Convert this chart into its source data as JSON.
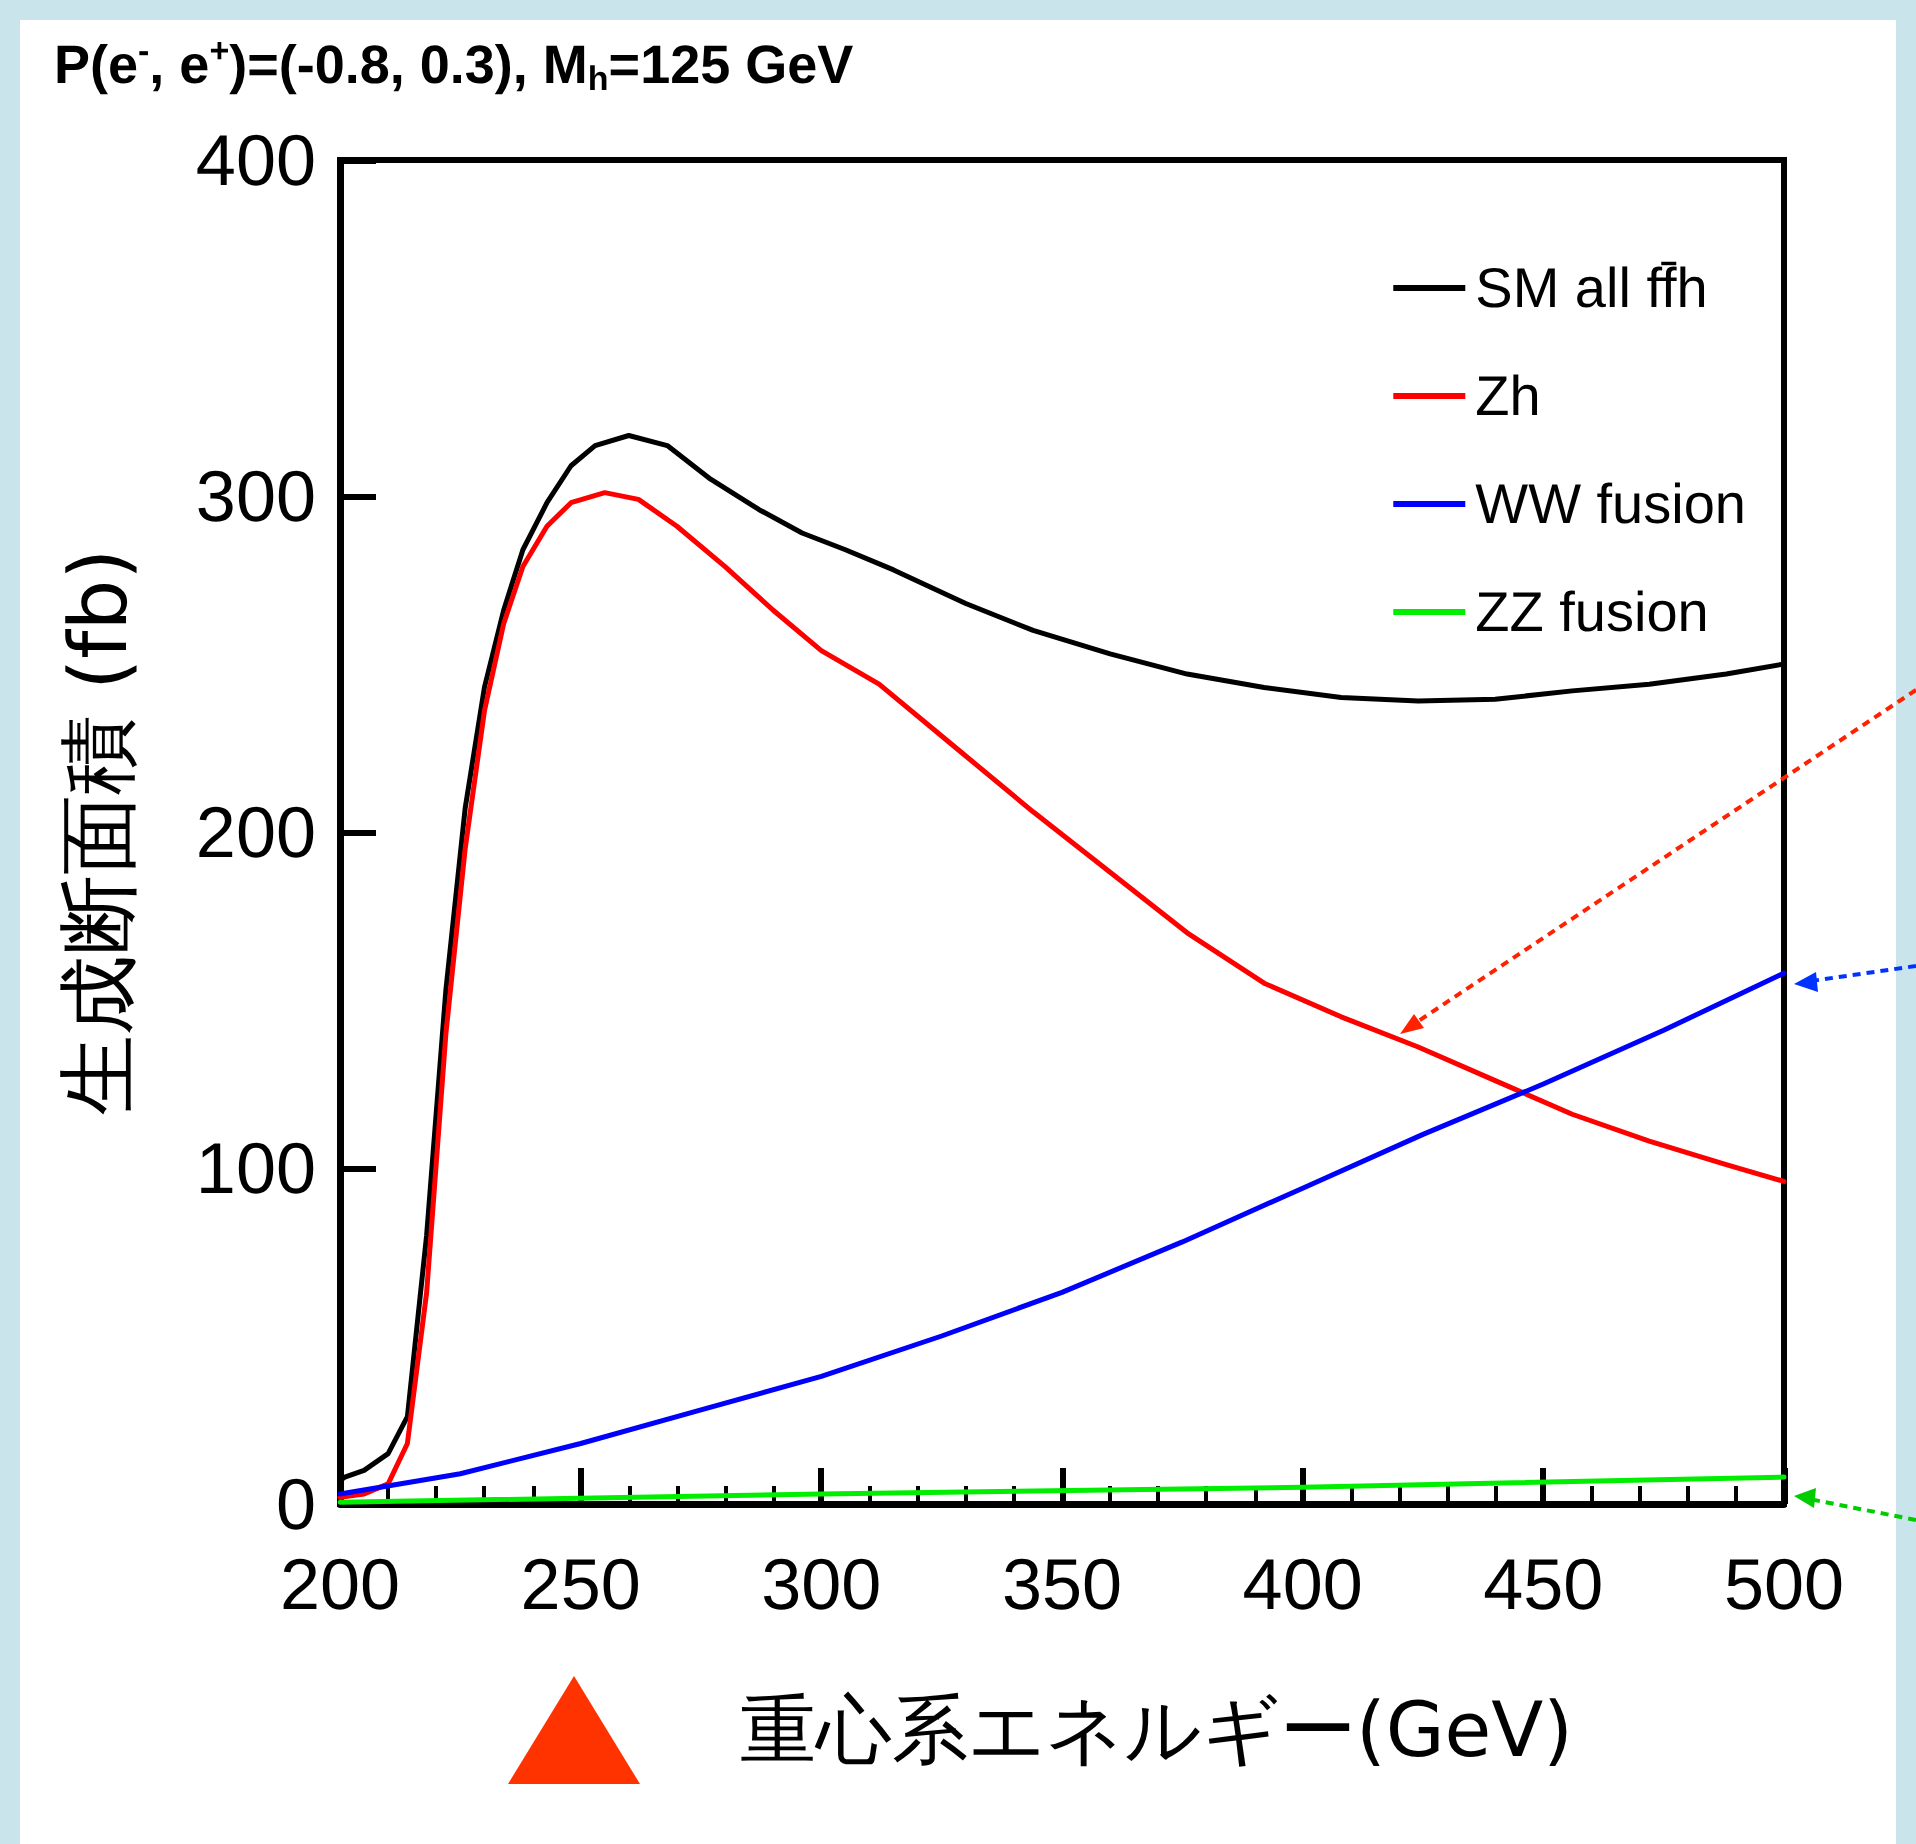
{
  "chart_data": {
    "type": "line",
    "title": "P(e$^{-}$, e$^{+}$)=(-0.8, 0.3), M$_{h}$=125 GeV",
    "xlabel": "重心系エネルギー(GeV)",
    "ylabel": "生成断面積 (fb)",
    "xlim": [
      200,
      500
    ],
    "xticks": [
      200,
      250,
      300,
      350,
      400,
      450,
      500
    ],
    "ylim": [
      0,
      400
    ],
    "yticks": [
      0,
      100,
      200,
      300,
      400
    ],
    "grid": false,
    "legend": "top right",
    "marker": "none",
    "line_style": "solid",
    "series": [
      {
        "name": "SM all ff̄h",
        "color": "#000000",
        "x": [
          200,
          201,
          205,
          210,
          214,
          218,
          222,
          226,
          230,
          234,
          238,
          243,
          248,
          253,
          260,
          268,
          277,
          287,
          296,
          305,
          315,
          330,
          344,
          360,
          376,
          392,
          408,
          424,
          440,
          456,
          472,
          488,
          500
        ],
        "values": [
          7,
          8,
          10,
          15,
          26,
          80,
          153,
          207,
          243,
          266,
          284,
          298,
          309,
          315,
          318,
          315,
          305,
          296,
          289,
          284,
          278,
          268,
          260,
          253,
          247,
          243,
          240,
          239,
          239.5,
          242,
          244,
          247,
          250
        ]
      },
      {
        "name": "Zh",
        "color": "#ff0000",
        "x": [
          200,
          205,
          210,
          214,
          218,
          222,
          226,
          230,
          234,
          238,
          243,
          248,
          255,
          262,
          270,
          280,
          290,
          300,
          312,
          328,
          344,
          360,
          376,
          392,
          408,
          424,
          440,
          456,
          472,
          488,
          500
        ],
        "values": [
          2,
          3,
          6,
          18,
          63,
          140,
          195,
          236,
          262,
          279,
          291,
          298,
          301,
          299,
          291,
          279,
          266,
          254,
          244,
          225,
          206,
          188,
          170,
          155,
          145,
          136,
          126,
          116,
          108,
          101,
          96
        ]
      },
      {
        "name": "WW fusion",
        "color": "#0000ff",
        "x": [
          200,
          225,
          250,
          275,
          300,
          325,
          350,
          375,
          400,
          425,
          450,
          475,
          500
        ],
        "values": [
          3,
          9,
          18,
          28,
          38,
          50,
          63,
          78,
          94,
          110,
          125,
          141,
          158
        ]
      },
      {
        "name": "ZZ fusion",
        "color": "#00ee00",
        "x": [
          200,
          300,
          400,
          500
        ],
        "values": [
          0.5,
          3,
          5,
          8
        ]
      }
    ]
  }
}
